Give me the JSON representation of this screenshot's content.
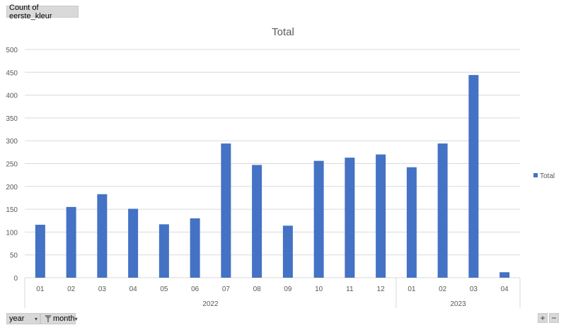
{
  "value_field": {
    "label": "Count of eerste_kleur"
  },
  "axis_fields": {
    "year_label": "year",
    "month_label": "month"
  },
  "zoom": {
    "plus": "+",
    "minus": "−"
  },
  "colors": {
    "bar": "#4472c4",
    "grid": "#d9d9d9",
    "axis_text": "#595959"
  },
  "chart_data": {
    "type": "bar",
    "title": "Total",
    "legend": {
      "position": "right",
      "entries": [
        "Total"
      ]
    },
    "grid": true,
    "ylim": [
      0,
      500
    ],
    "yticks": [
      0,
      50,
      100,
      150,
      200,
      250,
      300,
      350,
      400,
      450,
      500
    ],
    "groups": [
      {
        "label": "2022",
        "categories": [
          "01",
          "02",
          "03",
          "04",
          "05",
          "06",
          "07",
          "08",
          "09",
          "10",
          "11",
          "12"
        ]
      },
      {
        "label": "2023",
        "categories": [
          "01",
          "02",
          "03",
          "04"
        ]
      }
    ],
    "series": [
      {
        "name": "Total",
        "values": [
          116,
          155,
          183,
          151,
          117,
          130,
          294,
          247,
          114,
          256,
          263,
          270,
          242,
          294,
          444,
          12
        ]
      }
    ]
  }
}
